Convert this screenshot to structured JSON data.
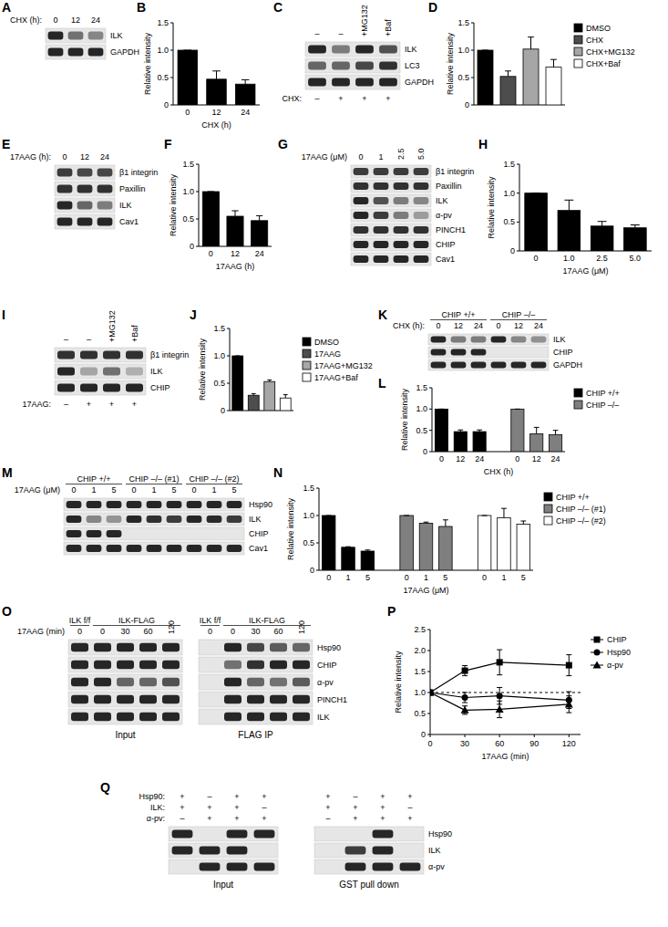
{
  "panel_labels": [
    "A",
    "B",
    "C",
    "D",
    "E",
    "F",
    "G",
    "H",
    "I",
    "J",
    "K",
    "L",
    "M",
    "N",
    "O",
    "P",
    "Q"
  ],
  "chart_data": [
    {
      "type": "bar",
      "x_label": "CHX (h)",
      "y_label": "Relative intensity",
      "categories": [
        "0",
        "12",
        "24"
      ],
      "values": [
        1.0,
        0.47,
        0.38
      ],
      "errors": [
        0,
        0.15,
        0.08
      ],
      "color": "#000000",
      "ylim": [
        0,
        1.5
      ],
      "yticks": [
        0,
        0.5,
        {
          "value": 1,
          "label": "1.0"
        },
        1.5
      ]
    },
    {
      "type": "bar",
      "y_label": "Relative intensity",
      "categories": [
        "DMSO",
        "CHX",
        "CHX+MG132",
        "CHX+Baf"
      ],
      "values": [
        1.0,
        0.52,
        1.02,
        0.69
      ],
      "errors": [
        0,
        0.1,
        0.22,
        0.14
      ],
      "colors": [
        "#000000",
        "#4d4d4d",
        "#a6a6a6",
        "#ffffff"
      ],
      "legend": "right",
      "tick_labels": "y",
      "ylim": [
        0,
        1.5
      ],
      "yticks": [
        0,
        0.5,
        {
          "value": 1,
          "label": "1.0"
        },
        1.5
      ]
    },
    {
      "type": "bar",
      "x_label": "17AAG (h)",
      "y_label": "Relative intensity",
      "categories": [
        "0",
        "12",
        "24"
      ],
      "values": [
        1.0,
        0.55,
        0.47
      ],
      "errors": [
        0,
        0.1,
        0.09
      ],
      "color": "#000000",
      "ylim": [
        0,
        1.5
      ],
      "yticks": [
        0,
        0.5,
        {
          "value": 1,
          "label": "1.0"
        },
        1.5
      ]
    },
    {
      "type": "bar",
      "x_label": "17AAG (μM)",
      "y_label": "Relative intensity",
      "categories": [
        "0",
        "1.0",
        "2.5",
        "5.0"
      ],
      "values": [
        1.0,
        0.7,
        0.43,
        0.4
      ],
      "errors": [
        0,
        0.18,
        0.08,
        0.05
      ],
      "color": "#000000",
      "ylim": [
        0,
        1.5
      ],
      "yticks": [
        0,
        0.5,
        {
          "value": 1,
          "label": "1.0"
        },
        1.5
      ]
    },
    {
      "type": "bar",
      "y_label": "Relative intensity",
      "categories": [
        "DMSO",
        "17AAG",
        "17AAG+MG132",
        "17AAG+Baf"
      ],
      "values": [
        1.0,
        0.28,
        0.53,
        0.23
      ],
      "errors": [
        0,
        0.03,
        0.03,
        0.06
      ],
      "colors": [
        "#000000",
        "#4d4d4d",
        "#a6a6a6",
        "#ffffff"
      ],
      "legend": "right",
      "tick_labels": "y",
      "ylim": [
        0,
        1.5
      ],
      "yticks": [
        0,
        0.5,
        {
          "value": 1,
          "label": "1.0"
        },
        1.5
      ]
    },
    {
      "type": "bar",
      "x_label": "CHX (h)",
      "y_label": "Relative intensity",
      "categories": [
        "0",
        "12",
        "24"
      ],
      "series": [
        {
          "name": "CHIP +/+",
          "color": "#000000",
          "values": [
            1.0,
            0.47,
            0.47
          ],
          "errors": [
            0,
            0.04,
            0.04
          ]
        },
        {
          "name": "CHIP –/–",
          "color": "#7f7f7f",
          "values": [
            1.0,
            0.42,
            0.4
          ],
          "errors": [
            0,
            0.15,
            0.1
          ]
        }
      ],
      "legend": "right",
      "ylim": [
        0,
        1.5
      ],
      "yticks": [
        0,
        0.5,
        {
          "value": 1,
          "label": "1.0"
        },
        1.5
      ]
    },
    {
      "type": "bar",
      "x_label": "17AAG (μM)",
      "y_label": "Relative intensity",
      "categories": [
        "0",
        "1",
        "5"
      ],
      "series": [
        {
          "name": "CHIP +/+",
          "color": "#000000",
          "values": [
            1.0,
            0.42,
            0.35
          ],
          "errors": [
            0,
            0.01,
            0.02
          ]
        },
        {
          "name": "CHIP –/– (#1)",
          "color": "#7f7f7f",
          "values": [
            1.0,
            0.86,
            0.8
          ],
          "errors": [
            0,
            0.02,
            0.12
          ]
        },
        {
          "name": "CHIP –/– (#2)",
          "color": "#ffffff",
          "values": [
            1.0,
            0.96,
            0.84
          ],
          "errors": [
            0,
            0.17,
            0.06
          ]
        }
      ],
      "legend": "right",
      "ylim": [
        0,
        1.5
      ],
      "yticks": [
        0,
        0.5,
        {
          "value": 1,
          "label": "1.0"
        },
        1.5
      ]
    },
    {
      "type": "line",
      "x_label": "17AAG (min)",
      "y_label": "Relative intensity",
      "x": [
        0,
        30,
        60,
        120
      ],
      "xlim": [
        0,
        130
      ],
      "xticks": [
        0,
        30,
        60,
        90,
        120
      ],
      "ylim": [
        0,
        2.5
      ],
      "yticks": [
        0,
        0.5,
        {
          "value": 1,
          "label": "1.0"
        },
        1.5,
        {
          "value": 2,
          "label": "2.0"
        },
        2.5
      ],
      "reference_line": 1,
      "legend": "right",
      "series": [
        {
          "name": "CHIP",
          "color": "#000000",
          "marker": "square",
          "values": [
            1.0,
            1.52,
            1.72,
            1.65
          ],
          "errors": [
            0,
            0.12,
            0.3,
            0.25
          ]
        },
        {
          "name": "Hsp90",
          "color": "#000000",
          "marker": "circle",
          "values": [
            1.0,
            0.88,
            0.92,
            0.82
          ],
          "errors": [
            0,
            0.12,
            0.2,
            0.2
          ]
        },
        {
          "name": "α-pv",
          "color": "#000000",
          "marker": "triangle",
          "values": [
            1.0,
            0.58,
            0.6,
            0.72
          ],
          "errors": [
            0,
            0.1,
            0.2,
            0.2
          ]
        }
      ]
    }
  ],
  "blots": [
    {
      "row_names": [
        "ILK",
        "GAPDH"
      ],
      "lane_rows": [
        {
          "name": "CHX (h):",
          "labels": [
            "0",
            "12",
            "24"
          ],
          "position": "top"
        }
      ],
      "sections": [
        {
          "intensities": [
            [
              0.9,
              0.55,
              0.45
            ],
            [
              0.9,
              0.9,
              0.9
            ]
          ]
        }
      ]
    },
    {
      "row_names": [
        "ILK",
        "LC3",
        "GAPDH"
      ],
      "lane_rows": [
        {
          "labels": [
            "–",
            "–",
            "+MG132",
            "+Baf"
          ],
          "position": "top"
        },
        {
          "name": "CHX:",
          "labels": [
            "–",
            "+",
            "+",
            "+"
          ],
          "position": "bottom"
        }
      ],
      "sections": [
        {
          "intensities": [
            [
              0.9,
              0.5,
              0.9,
              0.7
            ],
            [
              0.6,
              0.6,
              0.75,
              0.85
            ],
            [
              0.9,
              0.9,
              0.9,
              0.9
            ]
          ]
        }
      ]
    },
    {
      "row_names": [
        "β1 integrin",
        "Paxillin",
        "ILK",
        "Cav1"
      ],
      "lane_rows": [
        {
          "name": "17AAG (h):",
          "labels": [
            "0",
            "12",
            "24"
          ],
          "position": "top"
        }
      ],
      "sections": [
        {
          "intensities": [
            [
              0.8,
              0.75,
              0.75
            ],
            [
              0.85,
              0.85,
              0.85
            ],
            [
              0.9,
              0.6,
              0.5
            ],
            [
              0.9,
              0.9,
              0.9
            ]
          ]
        }
      ]
    },
    {
      "row_names": [
        "β1 integrin",
        "Paxillin",
        "ILK",
        "α-pv",
        "PINCH1",
        "CHIP",
        "Cav1"
      ],
      "lane_rows": [
        {
          "name": "17AAG (μM)",
          "labels": [
            "0",
            "1",
            "2.5",
            "5.0"
          ],
          "position": "top"
        }
      ],
      "sections": [
        {
          "intensities": [
            [
              0.8,
              0.8,
              0.8,
              0.8
            ],
            [
              0.85,
              0.85,
              0.85,
              0.85
            ],
            [
              0.9,
              0.7,
              0.5,
              0.45
            ],
            [
              0.9,
              0.8,
              0.5,
              0.35
            ],
            [
              0.85,
              0.85,
              0.85,
              0.85
            ],
            [
              0.9,
              0.9,
              0.9,
              0.9
            ],
            [
              0.9,
              0.9,
              0.9,
              0.9
            ]
          ]
        }
      ]
    },
    {
      "row_names": [
        "β1 integrin",
        "ILK",
        "CHIP"
      ],
      "lane_rows": [
        {
          "labels": [
            "–",
            "–",
            "+MG132",
            "+Baf"
          ],
          "position": "top"
        },
        {
          "name": "17AAG:",
          "labels": [
            "–",
            "+",
            "+",
            "+"
          ],
          "position": "bottom"
        }
      ],
      "sections": [
        {
          "intensities": [
            [
              0.85,
              0.85,
              0.85,
              0.85
            ],
            [
              0.9,
              0.3,
              0.55,
              0.25
            ],
            [
              0.9,
              0.9,
              0.9,
              0.9
            ]
          ]
        }
      ]
    },
    {
      "row_names": [
        "ILK",
        "CHIP",
        "GAPDH"
      ],
      "groups": [
        {
          "label": "CHIP +/+",
          "span": 3
        },
        {
          "label": "CHIP –/–",
          "span": 3
        }
      ],
      "lane_rows": [
        {
          "name": "CHX (h):",
          "labels": [
            "0",
            "12",
            "24",
            "0",
            "12",
            "24"
          ],
          "position": "top"
        }
      ],
      "sections": [
        {
          "intensities": [
            [
              0.9,
              0.5,
              0.5,
              0.9,
              0.45,
              0.4
            ],
            [
              0.9,
              0.9,
              0.9,
              0,
              0,
              0
            ],
            [
              0.9,
              0.9,
              0.9,
              0.9,
              0.9,
              0.9
            ]
          ]
        }
      ]
    },
    {
      "row_names": [
        "Hsp90",
        "ILK",
        "CHIP",
        "Cav1"
      ],
      "groups": [
        {
          "label": "CHIP +/+",
          "span": 3
        },
        {
          "label": "CHIP –/– (#1)",
          "span": 3
        },
        {
          "label": "CHIP –/– (#2)",
          "span": 3
        }
      ],
      "lane_rows": [
        {
          "name": "17AAG (μM)",
          "labels": [
            "0",
            "1",
            "5",
            "0",
            "1",
            "5",
            "0",
            "1",
            "5"
          ],
          "position": "top"
        }
      ],
      "sections": [
        {
          "intensities": [
            [
              0.9,
              0.9,
              0.9,
              0.9,
              0.9,
              0.9,
              0.9,
              0.9,
              0.9
            ],
            [
              0.9,
              0.45,
              0.38,
              0.9,
              0.86,
              0.8,
              0.9,
              0.88,
              0.8
            ],
            [
              0.9,
              0.9,
              0.9,
              0,
              0,
              0,
              0,
              0,
              0
            ],
            [
              0.9,
              0.9,
              0.9,
              0.9,
              0.9,
              0.9,
              0.9,
              0.9,
              0.9
            ]
          ]
        }
      ]
    },
    {
      "row_names": [
        "Hsp90",
        "CHIP",
        "α-pv",
        "PINCH1",
        "ILK"
      ],
      "groups": [
        {
          "label": "ILK f/f",
          "span": 1
        },
        {
          "label": "ILK-FLAG",
          "span": 4
        }
      ],
      "lane_rows": [
        {
          "name": "17AAG (min)",
          "labels": [
            "0",
            "0",
            "30",
            "60",
            "120"
          ],
          "position": "top"
        }
      ],
      "sections": [
        {
          "caption": "Input",
          "intensities": [
            [
              0.9,
              0.9,
              0.9,
              0.9,
              0.9
            ],
            [
              0.9,
              0.9,
              0.9,
              0.9,
              0.9
            ],
            [
              0.9,
              0.9,
              0.6,
              0.6,
              0.7
            ],
            [
              0.9,
              0.9,
              0.9,
              0.9,
              0.9
            ],
            [
              0.9,
              0.9,
              0.9,
              0.9,
              0.9
            ]
          ]
        },
        {
          "caption": "FLAG IP",
          "intensities": [
            [
              0,
              0.9,
              0.75,
              0.65,
              0.6
            ],
            [
              0,
              0.55,
              0.85,
              0.9,
              0.9
            ],
            [
              0,
              0.9,
              0.6,
              0.55,
              0.65
            ],
            [
              0,
              0.9,
              0.9,
              0.9,
              0.9
            ],
            [
              0,
              0.9,
              0.9,
              0.9,
              0.9
            ]
          ]
        }
      ]
    },
    {
      "row_names": [
        "Hsp90",
        "ILK",
        "α-pv"
      ],
      "lane_rows": [
        {
          "name": "Hsp90:",
          "labels": [
            "+",
            "–",
            "+",
            "+"
          ],
          "position": "top"
        },
        {
          "name": "ILK:",
          "labels": [
            "+",
            "+",
            "+",
            "–"
          ],
          "position": "top"
        },
        {
          "name": "α-pv:",
          "labels": [
            "–",
            "+",
            "+",
            "+"
          ],
          "position": "top"
        }
      ],
      "sections": [
        {
          "caption": "Input",
          "intensities": [
            [
              0.9,
              0,
              0.9,
              0.9
            ],
            [
              0.9,
              0.9,
              0.9,
              0
            ],
            [
              0,
              0.9,
              0.9,
              0.9
            ]
          ]
        },
        {
          "caption": "GST pull down",
          "intensities": [
            [
              0,
              0,
              0.9,
              0
            ],
            [
              0,
              0.8,
              0.9,
              0
            ],
            [
              0,
              0.9,
              0.9,
              0.9
            ]
          ]
        }
      ]
    }
  ]
}
